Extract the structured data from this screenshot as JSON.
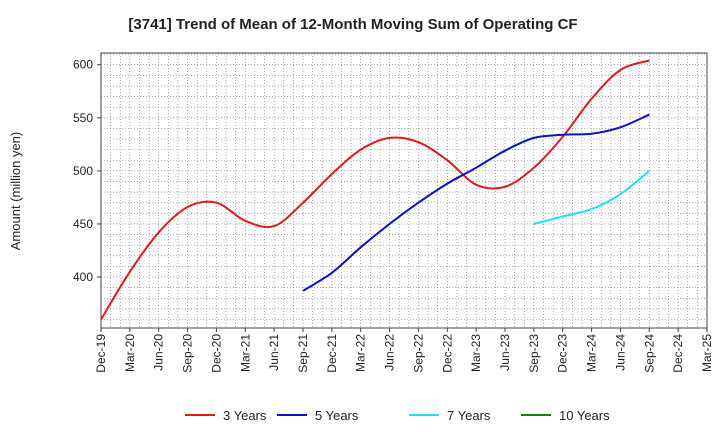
{
  "chart_data": {
    "type": "line",
    "title": "[3741]  Trend of Mean of 12-Month Moving Sum of Operating CF",
    "xlabel": "",
    "ylabel": "Amount (million yen)",
    "ylim": [
      352,
      611
    ],
    "yticks": [
      400,
      450,
      500,
      550,
      600
    ],
    "grid": true,
    "legend_position": "bottom",
    "categories": [
      "Dec-19",
      "Mar-20",
      "Jun-20",
      "Sep-20",
      "Dec-20",
      "Mar-21",
      "Jun-21",
      "Sep-21",
      "Dec-21",
      "Mar-22",
      "Jun-22",
      "Sep-22",
      "Dec-22",
      "Mar-23",
      "Jun-23",
      "Sep-23",
      "Dec-23",
      "Mar-24",
      "Jun-24",
      "Sep-24",
      "Dec-24",
      "Mar-25"
    ],
    "series": [
      {
        "name": "3 Years",
        "color": "#e31a1c",
        "values": [
          360,
          405,
          442,
          466,
          470,
          453,
          448,
          470,
          497,
          520,
          531,
          527,
          510,
          487,
          485,
          503,
          532,
          568,
          595,
          604,
          null,
          null
        ]
      },
      {
        "name": "5 Years",
        "color": "#0a12cc",
        "values": [
          null,
          null,
          null,
          null,
          null,
          null,
          null,
          387,
          404,
          428,
          450,
          470,
          488,
          503,
          519,
          531,
          534,
          535,
          541,
          553,
          null,
          null
        ]
      },
      {
        "name": "7 Years",
        "color": "#22e1ee",
        "values": [
          null,
          null,
          null,
          null,
          null,
          null,
          null,
          null,
          null,
          null,
          null,
          null,
          null,
          null,
          null,
          450,
          457,
          464,
          478,
          500,
          null,
          null
        ]
      },
      {
        "name": "10 Years",
        "color": "#1a7f1a",
        "values": [
          null,
          null,
          null,
          null,
          null,
          null,
          null,
          null,
          null,
          null,
          null,
          null,
          null,
          null,
          null,
          null,
          null,
          null,
          null,
          null,
          null,
          null
        ]
      }
    ]
  }
}
